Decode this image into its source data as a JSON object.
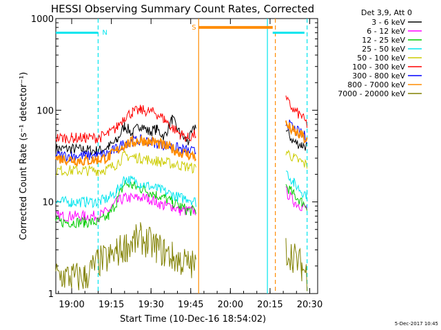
{
  "chart_data": {
    "type": "line",
    "title": "HESSI Observing Summary Count Rates, Corrected",
    "xlabel": "Start Time (10-Dec-16 18:54:02)",
    "ylabel": "Corrected Count Rate (s⁻¹ detector⁻¹)",
    "y_scale": "log",
    "ylim": [
      1,
      1000
    ],
    "xlim": [
      "18:54",
      "20:33"
    ],
    "x_ticks": [
      "19:00",
      "19:15",
      "19:30",
      "19:45",
      "20:00",
      "20:15",
      "20:30"
    ],
    "y_ticks": [
      "1",
      "10",
      "100",
      "1000"
    ],
    "legend_header": "Det 3,9, Att 0",
    "legend_position": "right",
    "footer_date": "5-Dec-2017 10:45",
    "annotations": [
      {
        "label": "N",
        "color": "#00e5ee",
        "start": "18:54",
        "end": "19:10",
        "level": 700
      },
      {
        "label": "S",
        "color": "#ff8c00",
        "start": "19:48",
        "end": "20:16",
        "level": 800
      },
      {
        "label": "",
        "color": "#00e5ee",
        "start": "20:16",
        "end": "20:28",
        "level": 700
      }
    ],
    "markers": [
      {
        "time": "19:10",
        "color": "#00e5ee",
        "style": "dashed"
      },
      {
        "time": "19:48",
        "color": "#ff8c00",
        "style": "solid"
      },
      {
        "time": "20:14",
        "color": "#00e5ee",
        "style": "solid"
      },
      {
        "time": "20:17",
        "color": "#ff8c00",
        "style": "dashed"
      },
      {
        "time": "20:29",
        "color": "#00e5ee",
        "style": "dashed"
      }
    ],
    "x": [
      "18:54",
      "19:00",
      "19:05",
      "19:10",
      "19:14",
      "19:17",
      "19:20",
      "19:23",
      "19:26",
      "19:29",
      "19:32",
      "19:35",
      "19:38",
      "19:41",
      "19:44",
      "19:47",
      "20:18",
      "20:21",
      "20:24",
      "20:27",
      "20:29"
    ],
    "series": [
      {
        "name": "3 - 6 keV",
        "color": "#000000",
        "values": [
          38,
          38,
          37,
          36,
          40,
          46,
          68,
          55,
          70,
          58,
          62,
          52,
          80,
          55,
          45,
          70,
          null,
          60,
          45,
          42,
          40
        ]
      },
      {
        "name": "6 - 12 keV",
        "color": "#ff00ff",
        "values": [
          7,
          7,
          7,
          7,
          8,
          10,
          11,
          11,
          11,
          11,
          10,
          9,
          9,
          8,
          8,
          8,
          null,
          13,
          10,
          9,
          8.5
        ]
      },
      {
        "name": "12 - 25 keV",
        "color": "#00cc00",
        "values": [
          6,
          6,
          6,
          6,
          7,
          10,
          16,
          15,
          14,
          13,
          12,
          11,
          10,
          9,
          8,
          8,
          null,
          15,
          12,
          10,
          9
        ]
      },
      {
        "name": "25 - 50 keV",
        "color": "#00e5ee",
        "values": [
          10,
          10,
          10,
          10,
          11,
          13,
          18,
          17,
          16,
          15,
          14,
          13,
          12,
          11,
          11,
          10,
          null,
          22,
          16,
          13,
          12
        ]
      },
      {
        "name": "50 - 100 keV",
        "color": "#cccc00",
        "values": [
          22,
          22,
          22,
          22,
          23,
          26,
          32,
          31,
          30,
          29,
          28,
          27,
          26,
          25,
          24,
          23,
          null,
          36,
          30,
          27,
          25
        ]
      },
      {
        "name": "100 - 300 keV",
        "color": "#ff0000",
        "values": [
          50,
          50,
          50,
          50,
          55,
          65,
          85,
          95,
          100,
          98,
          92,
          80,
          65,
          55,
          50,
          55,
          null,
          130,
          100,
          85,
          70
        ]
      },
      {
        "name": "300 - 800 keV",
        "color": "#0000ff",
        "values": [
          32,
          32,
          32,
          32,
          34,
          38,
          44,
          46,
          47,
          46,
          44,
          42,
          40,
          38,
          36,
          35,
          null,
          75,
          62,
          55,
          50
        ]
      },
      {
        "name": "800 - 7000 keV",
        "color": "#ff8c00",
        "values": [
          30,
          29,
          28,
          29,
          31,
          36,
          42,
          45,
          47,
          46,
          44,
          41,
          38,
          35,
          33,
          31,
          null,
          70,
          58,
          52,
          46
        ]
      },
      {
        "name": "7000 - 20000 keV",
        "color": "#808000",
        "values": [
          1.6,
          1.5,
          1.5,
          2.2,
          2.4,
          2.8,
          3.2,
          3.6,
          4,
          3.6,
          3.2,
          2.8,
          2.5,
          2.3,
          2.1,
          2,
          null,
          3,
          2.5,
          2,
          1.6
        ]
      }
    ]
  }
}
